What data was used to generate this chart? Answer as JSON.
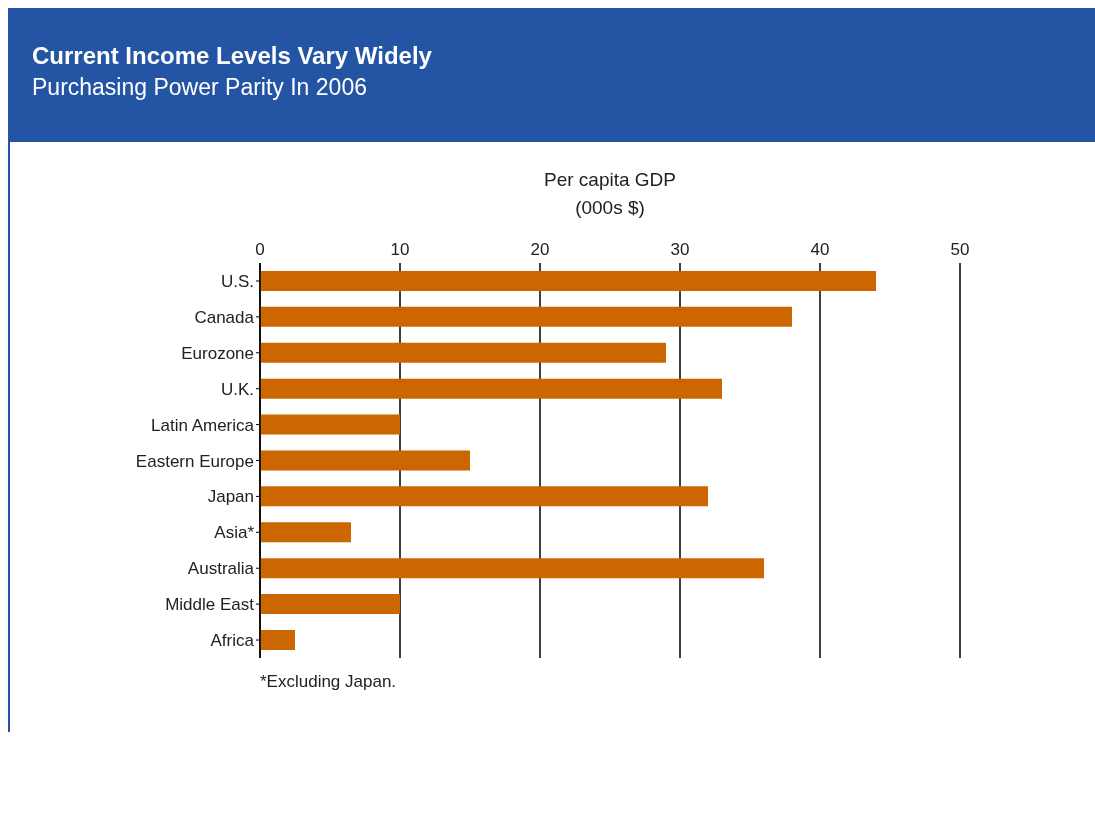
{
  "chart_data": {
    "type": "bar",
    "orientation": "horizontal",
    "title": "Current Income Levels Vary Widely",
    "subtitle": "Purchasing Power Parity In 2006",
    "xlabel": "Per capita GDP\n(000s $)",
    "categories": [
      "U.S.",
      "Canada",
      "Eurozone",
      "U.K.",
      "Latin America",
      "Eastern Europe",
      "Japan",
      "Asia*",
      "Australia",
      "Middle East",
      "Africa"
    ],
    "values": [
      44,
      38,
      29,
      33,
      10,
      15,
      32,
      6.5,
      36,
      10,
      2.5
    ],
    "color": "#cc6600",
    "xlim": [
      0,
      50
    ],
    "xticks": [
      0,
      10,
      20,
      30,
      40,
      50
    ],
    "grid": "x",
    "legend": false,
    "annotations": [
      "*Excluding Japan."
    ]
  }
}
